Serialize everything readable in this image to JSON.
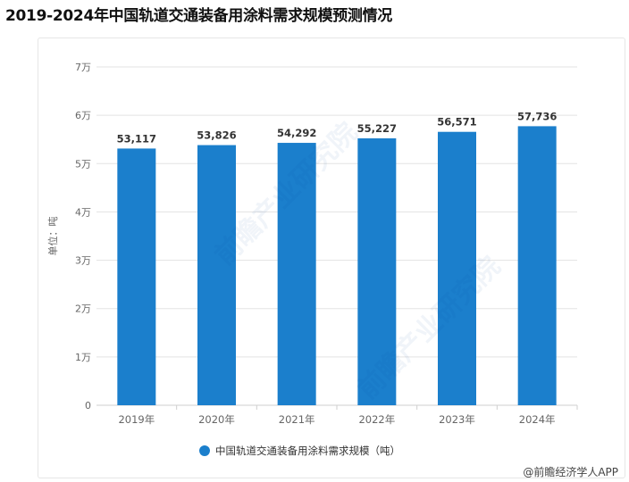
{
  "header": {
    "title": "2019-2024年中国轨道交通装备用涂料需求规模预测情况"
  },
  "footer": {
    "credit": "@前瞻经济学人APP"
  },
  "watermark": {
    "text": "前瞻产业研究院"
  },
  "colors": {
    "bar": "#1b7fcc",
    "grid": "#e3e3e3",
    "axis_text": "#666666",
    "label_text": "#333333"
  },
  "chart_data": {
    "type": "bar",
    "title": "",
    "categories": [
      "2019年",
      "2020年",
      "2021年",
      "2022年",
      "2023年",
      "2024年"
    ],
    "series": [
      {
        "name": "中国轨道交通装备用涂料需求规模（吨）",
        "values": [
          53117,
          53826,
          54292,
          55227,
          56571,
          57736
        ],
        "value_labels": [
          "53,117",
          "53,826",
          "54,292",
          "55,227",
          "56,571",
          "57,736"
        ],
        "color": "#1b7fcc"
      }
    ],
    "ylim": [
      0,
      70000
    ],
    "yticks": [
      0,
      10000,
      20000,
      30000,
      40000,
      50000,
      60000,
      70000
    ],
    "ytick_labels": [
      "0",
      "1万",
      "2万",
      "3万",
      "4万",
      "5万",
      "6万",
      "7万"
    ],
    "xlabel": "",
    "ylabel": "单位：吨",
    "grid": true,
    "legend_position": "bottom-center"
  }
}
